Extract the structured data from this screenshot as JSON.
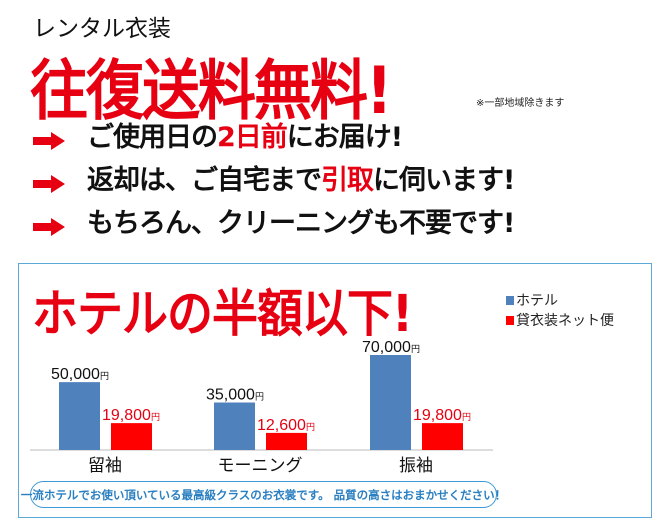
{
  "header": {
    "subtitle": "レンタル衣装",
    "headline": "往復送料無料!",
    "note": "※一部地域除きます"
  },
  "features": [
    {
      "parts": [
        {
          "t": "ご使用日の",
          "red": false
        },
        {
          "t": "2日前",
          "red": true
        },
        {
          "t": "にお届け!",
          "red": false
        }
      ]
    },
    {
      "parts": [
        {
          "t": "返却は、ご自宅まで",
          "red": false
        },
        {
          "t": "引取",
          "red": true
        },
        {
          "t": "に伺います!",
          "red": false
        }
      ]
    },
    {
      "parts": [
        {
          "t": "もちろん、クリーニングも不要です!",
          "red": false
        }
      ]
    }
  ],
  "colors": {
    "accent": "#e60012",
    "hotel": "#4f81bd",
    "rental": "#ff0000",
    "frame": "#5aa9d6"
  },
  "panel": {
    "title": "ホテルの半額以下!",
    "footer": "一流ホテルでお使い頂いている最高級クラスのお衣裳です。 品質の高さはおまかせください！"
  },
  "chart_data": {
    "type": "bar",
    "categories": [
      "留袖",
      "モーニング",
      "振袖"
    ],
    "series": [
      {
        "name": "ホテル",
        "values": [
          50000,
          35000,
          70000
        ],
        "labels": [
          "50,000円",
          "35,000円",
          "70,000円"
        ],
        "color": "#4f81bd"
      },
      {
        "name": "貸衣装ネット便",
        "values": [
          19800,
          12600,
          19800
        ],
        "labels": [
          "19,800円",
          "12,600円",
          "19,800円"
        ],
        "color": "#ff0000"
      }
    ],
    "ylim": [
      0,
      70000
    ],
    "legend": "top-right",
    "grid": false
  }
}
